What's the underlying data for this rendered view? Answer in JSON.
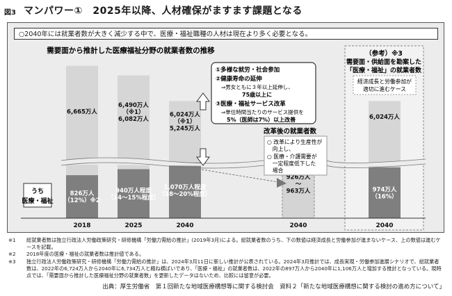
{
  "figure": {
    "label": "図3",
    "title": "マンパワー①　2025年以降、人材確保がますます課題となる",
    "lead": "○2040年には就業者数が大きく減少する中で、医療・福祉職種の人材は現在より多く必要となる。"
  },
  "chart_data": {
    "type": "bar",
    "title": "需要面から推計した医療福祉分野の就業者数の推移",
    "categories": [
      "2018",
      "2025",
      "2040",
      "2040",
      "2040"
    ],
    "series": [
      {
        "name": "うち 医療・福祉",
        "values": [
          826,
          940,
          1070,
          926,
          974
        ],
        "labels": [
          "826万人\n（12%）※2",
          "940万人程度\n（14～15%程度）",
          "1,070万人程度\n（18～20%程度）",
          "926万人\n～\n963万人",
          "974万人\n（16%）"
        ]
      },
      {
        "name": "",
        "values": [
          6665,
          6490,
          6024,
          null,
          6024
        ],
        "labels": [
          "6,665万人",
          "6,490万人\n（※1）\n6,082万人",
          "6,024万人\n（※1）\n5,245万人",
          "",
          "6,024万人"
        ]
      }
    ],
    "left_legend": "うち\n医療・福祉",
    "axis_break": true
  },
  "callouts": {
    "measures": [
      "①多様な就労・社会参加",
      "②健康寿命の延伸",
      "⇒男女ともに３年以上延伸し、",
      "75歳以上に",
      "③医療・福祉サービス改革",
      "⇒単位時間当たりのサービス提供を",
      "5%（医師は7%）以上改善"
    ],
    "after_reform": {
      "title": "改革後の就業者数",
      "items": [
        "○ 改革により生産性が",
        "　向上し、",
        "○ 医療・介護需要が",
        "　一定程度低下した",
        "　場合"
      ]
    },
    "reference": {
      "title": "（参考）※3",
      "subtitle": [
        "需要面・供給面を勘案した",
        "「医療・福祉」の就業者数"
      ],
      "note": [
        "経済成長と労働参加が",
        "適切に進むケース"
      ]
    }
  },
  "notes": [
    {
      "mark": "※1",
      "text": "総就業者数は独立行政法人労働政策研究・研修機構「労働力需給の推計」(2019年3月)による。総就業者数のうち、下の数値は経済成長と労働参加が進まないケース、上の数値は進むケースを記載。"
    },
    {
      "mark": "※2",
      "text": "2018年度の医療・福祉の就業者数は推計値である。"
    },
    {
      "mark": "※3",
      "text": "独立行政法人労働政策研究・研修機構「労働力需給の推計」は、2024年3月11日に新しい推計が公表されている。2024年3月推計では、成長実現・労働参加進展シナリオで、総就業者数は、2022年の6,724万人から2040年に6,734万人と概ね横ばいであり、「医療・福祉」の就業者数は、2022年の897万人から2040年に1,106万人と増加する推計となっている。現時点では、「需要面から推計した医療福祉分野の就業者数」を更新したデータはないため、比較には留意が必要。"
    }
  ],
  "source": "出典：厚生労働省　第１回新たな地域医療構想等に関する検討会　資料２「新たな地域医療構想に関する検討の進め方について」"
}
